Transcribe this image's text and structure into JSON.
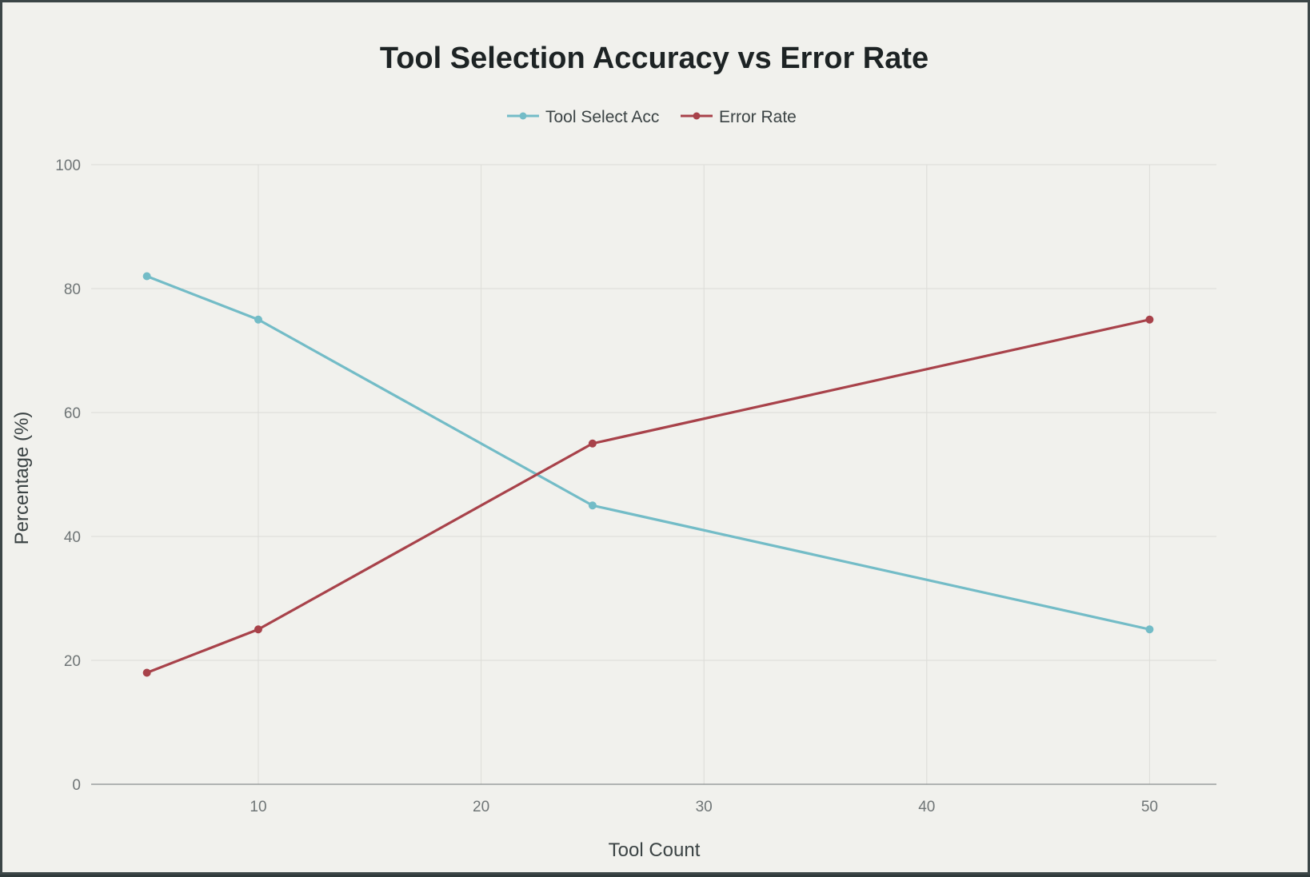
{
  "colors": {
    "acc": "#73bcc7",
    "err": "#a8424a"
  },
  "chart_data": {
    "type": "line",
    "title": "Tool Selection Accuracy vs Error Rate",
    "xlabel": "Tool Count",
    "ylabel": "Percentage (%)",
    "xlim": [
      2.5,
      53
    ],
    "ylim": [
      0,
      100
    ],
    "xticks": [
      10,
      20,
      30,
      40,
      50
    ],
    "yticks": [
      0,
      20,
      40,
      60,
      80,
      100
    ],
    "grid": true,
    "legend_position": "top-center",
    "x": [
      5,
      10,
      25,
      50
    ],
    "series": [
      {
        "name": "Tool Select Acc",
        "color": "#73bcc7",
        "values": [
          82,
          75,
          45,
          25
        ]
      },
      {
        "name": "Error Rate",
        "color": "#a8424a",
        "values": [
          18,
          25,
          55,
          75
        ]
      }
    ]
  }
}
